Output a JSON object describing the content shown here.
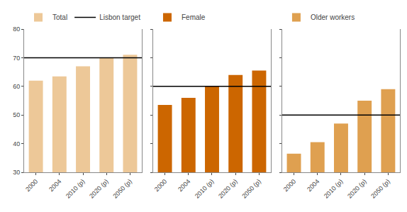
{
  "chart_data": [
    {
      "type": "bar",
      "categories": [
        "2000",
        "2004",
        "2010 (p)",
        "2020 (p)",
        "2050 (p)"
      ],
      "series": [
        {
          "name": "Total",
          "color": "#edc898",
          "values": [
            62,
            63.5,
            67,
            70,
            71
          ]
        }
      ],
      "target_line": {
        "name": "Lisbon target",
        "value": 70,
        "color": "#000000"
      },
      "ylim": [
        30,
        80
      ],
      "yticks": [
        30,
        40,
        50,
        60,
        70,
        80
      ],
      "grid": false
    },
    {
      "type": "bar",
      "categories": [
        "2000",
        "2004",
        "2010 (p)",
        "2020 (p)",
        "2050 (p)"
      ],
      "series": [
        {
          "name": "Female",
          "color": "#cc6600",
          "values": [
            53.5,
            56,
            60.2,
            64,
            65.5
          ]
        }
      ],
      "target_line": {
        "value": 60,
        "color": "#000000"
      },
      "ylim": [
        30,
        80
      ],
      "yticks": [
        30,
        40,
        50,
        60,
        70,
        80
      ],
      "grid": false,
      "tick_labels": "x"
    },
    {
      "type": "bar",
      "categories": [
        "2000",
        "2004",
        "2010 (p)",
        "2020 (p)",
        "2050 (p)"
      ],
      "series": [
        {
          "name": "Older workers",
          "color": "#dfa050",
          "values": [
            36.5,
            40.5,
            47,
            55,
            59
          ]
        }
      ],
      "target_line": {
        "value": 50,
        "color": "#000000"
      },
      "ylim": [
        30,
        80
      ],
      "yticks": [
        30,
        40,
        50,
        60,
        70,
        80
      ],
      "grid": false,
      "tick_labels": "x"
    }
  ]
}
